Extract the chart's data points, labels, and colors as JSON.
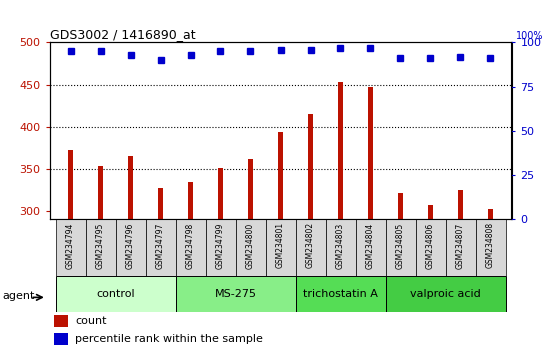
{
  "title": "GDS3002 / 1416890_at",
  "samples": [
    "GSM234794",
    "GSM234795",
    "GSM234796",
    "GSM234797",
    "GSM234798",
    "GSM234799",
    "GSM234800",
    "GSM234801",
    "GSM234802",
    "GSM234803",
    "GSM234804",
    "GSM234805",
    "GSM234806",
    "GSM234807",
    "GSM234808"
  ],
  "counts": [
    372,
    353,
    365,
    327,
    334,
    351,
    362,
    394,
    415,
    453,
    447,
    321,
    307,
    325,
    303
  ],
  "percentile_ranks": [
    95,
    95,
    93,
    90,
    93,
    95,
    95,
    96,
    96,
    97,
    97,
    91,
    91,
    92,
    91
  ],
  "groups": [
    {
      "label": "control",
      "start": 0,
      "end": 3,
      "color": "#ccffcc"
    },
    {
      "label": "MS-275",
      "start": 4,
      "end": 7,
      "color": "#88ee88"
    },
    {
      "label": "trichostatin A",
      "start": 8,
      "end": 10,
      "color": "#55dd55"
    },
    {
      "label": "valproic acid",
      "start": 11,
      "end": 14,
      "color": "#44cc44"
    }
  ],
  "ylim_left": [
    290,
    500
  ],
  "ylim_right": [
    0,
    100
  ],
  "yticks_left": [
    300,
    350,
    400,
    450,
    500
  ],
  "yticks_right": [
    0,
    25,
    50,
    75,
    100
  ],
  "bar_color": "#bb1100",
  "dot_color": "#0000cc",
  "background_color": "#ffffff",
  "plot_bg": "#ffffff",
  "agent_label": "agent"
}
